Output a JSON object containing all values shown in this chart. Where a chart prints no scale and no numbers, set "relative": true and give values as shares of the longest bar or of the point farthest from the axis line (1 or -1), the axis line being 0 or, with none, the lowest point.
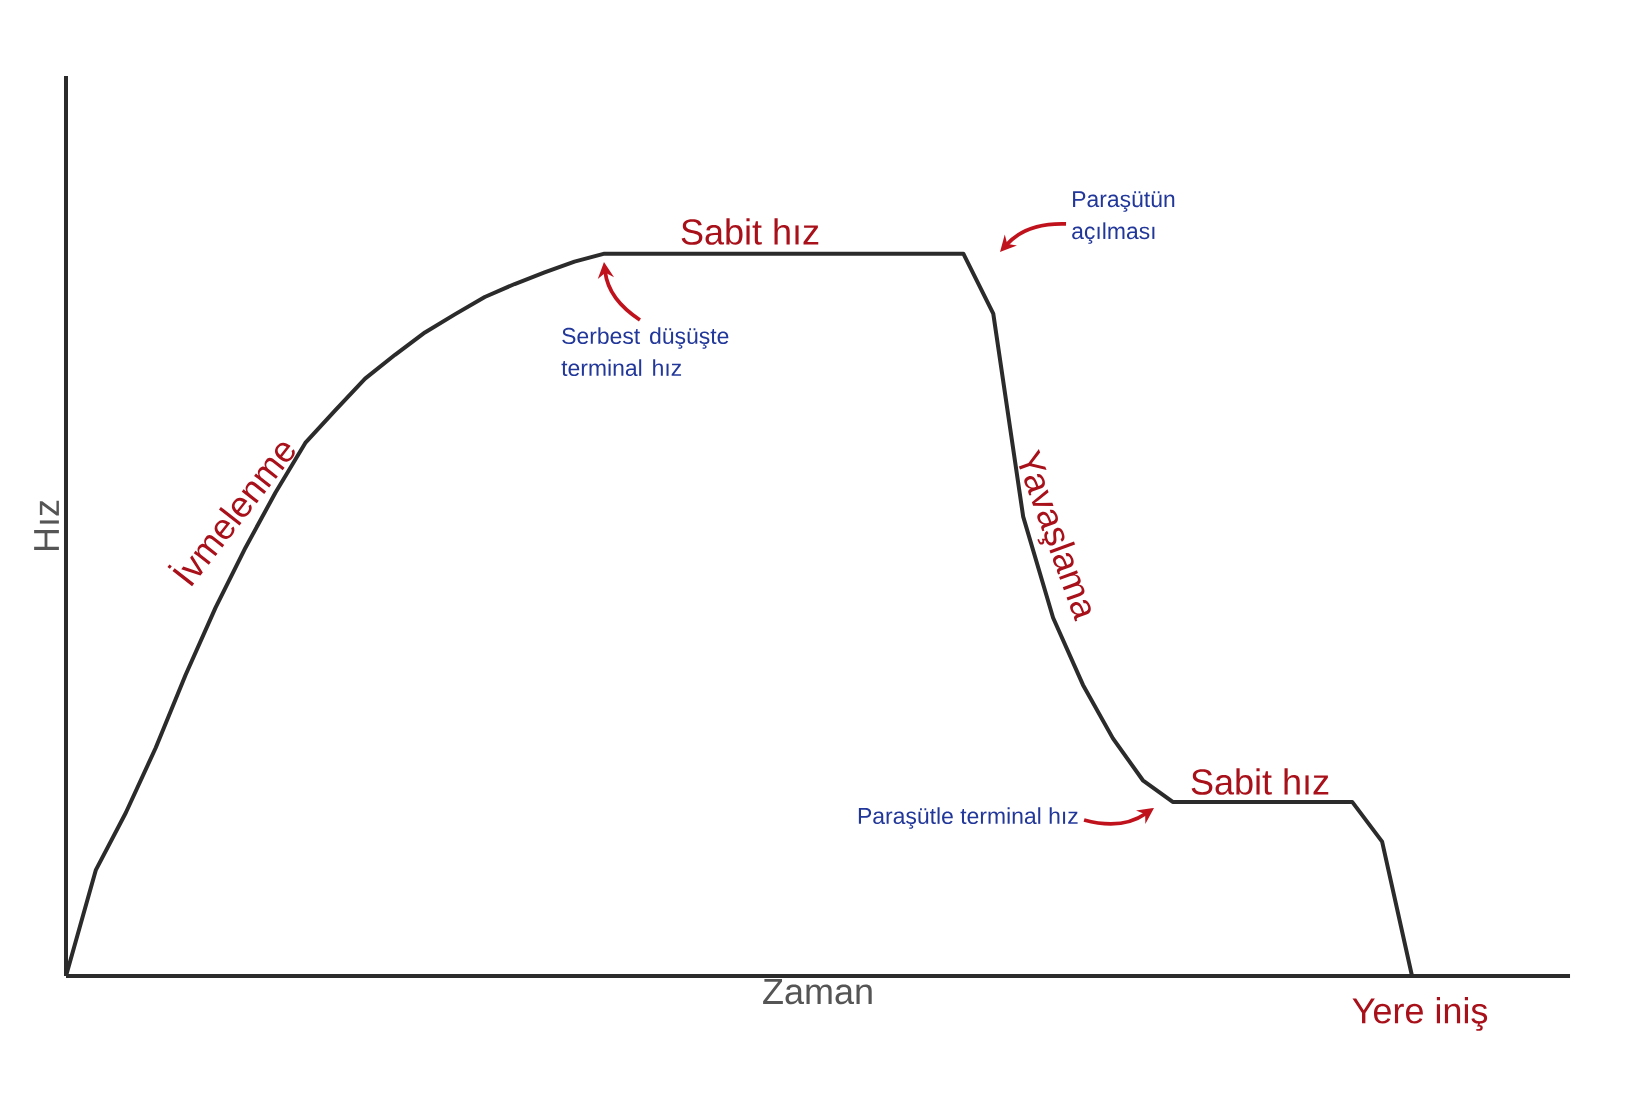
{
  "chart_data": {
    "type": "line",
    "relative": true,
    "xlabel": "Zaman",
    "ylabel": "Hız",
    "tick_labels": false,
    "marker": "none",
    "line_style": "solid",
    "categories": [
      null,
      null,
      null,
      null,
      null,
      null,
      null,
      null,
      null,
      null,
      null,
      null,
      null,
      null,
      null,
      null,
      null,
      null,
      null,
      null,
      null,
      null,
      null,
      null,
      null,
      null,
      null,
      null,
      null,
      null,
      null,
      null,
      null,
      null,
      null,
      null,
      null,
      null,
      null,
      null,
      null,
      null,
      null,
      null,
      null,
      null
    ],
    "series": [
      {
        "color": "#2b2b2b",
        "values": [
          0,
          0.147,
          0.226,
          0.316,
          0.417,
          0.51,
          0.593,
          0.669,
          0.738,
          0.783,
          0.827,
          0.86,
          0.891,
          0.916,
          0.94,
          0.958,
          0.974,
          0.989,
          1,
          1,
          1,
          1,
          1,
          1,
          1,
          1,
          1,
          1,
          1,
          1,
          1,
          0.917,
          0.636,
          0.496,
          0.403,
          0.329,
          0.271,
          0.241,
          0.241,
          0.241,
          0.241,
          0.241,
          0.241,
          0.241,
          0.186,
          0
        ]
      }
    ],
    "annotations": [
      "Sabit hız",
      "Serbest düşüşte terminal hız",
      "Paraşütün açılması",
      "İvmelenme",
      "Yavaşlama",
      "Sabit hız",
      "Paraşütle terminal hız",
      "Yere iniş"
    ]
  }
}
